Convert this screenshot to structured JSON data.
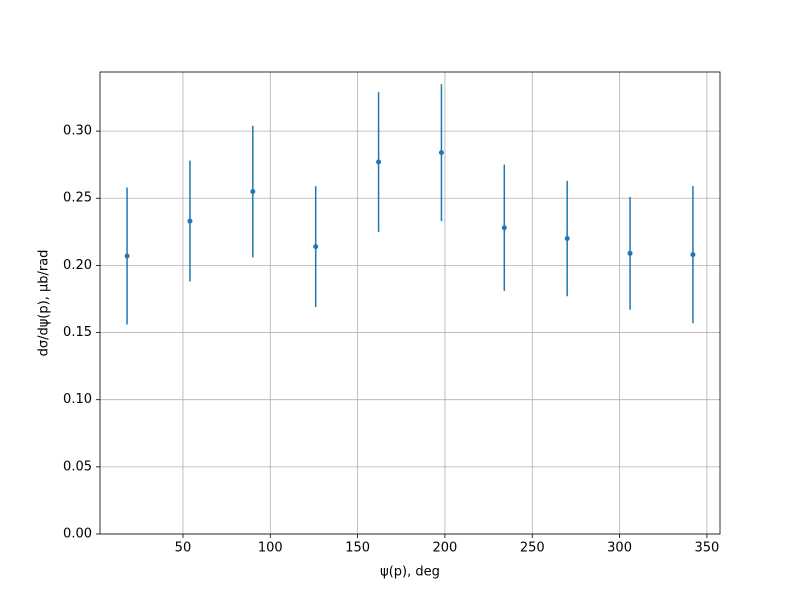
{
  "chart_data": {
    "type": "errorbar",
    "x_label": "ψ(p), deg",
    "y_label": "dσ/dψ(p), μb/rad",
    "x": [
      18,
      54,
      90,
      126,
      162,
      198,
      234,
      270,
      306,
      342
    ],
    "series": [
      {
        "color": "#1f77b4",
        "values": [
          0.207,
          0.233,
          0.255,
          0.214,
          0.277,
          0.284,
          0.228,
          0.22,
          0.209,
          0.208
        ],
        "errors": [
          0.051,
          0.045,
          0.049,
          0.045,
          0.052,
          0.051,
          0.047,
          0.043,
          0.042,
          0.051
        ]
      }
    ],
    "xlim": [
      2.5,
      357.5
    ],
    "ylim": [
      0,
      0.344
    ],
    "xticks": [
      50,
      100,
      150,
      200,
      250,
      300,
      350
    ],
    "yticks": [
      {
        "value": 0,
        "label": "0.00"
      },
      {
        "value": 0.05,
        "label": "0.05"
      },
      {
        "value": 0.1,
        "label": "0.10"
      },
      {
        "value": 0.15,
        "label": "0.15"
      },
      {
        "value": 0.2,
        "label": "0.20"
      },
      {
        "value": 0.25,
        "label": "0.25"
      },
      {
        "value": 0.3,
        "label": "0.30"
      }
    ],
    "grid": true
  }
}
